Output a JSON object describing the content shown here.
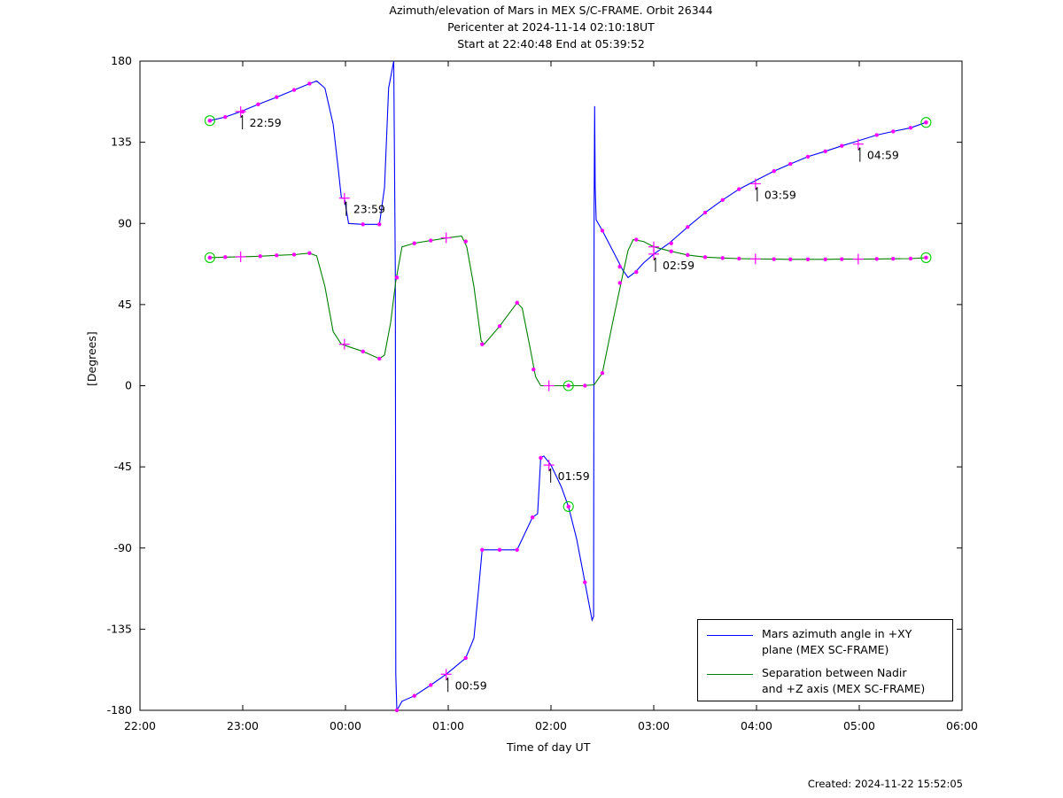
{
  "header": {
    "title": "Azimuth/elevation of Mars in MEX S/C-FRAME.  Orbit 26344",
    "subtitle1": "Pericenter at 2024-11-14 02:10:18UT",
    "subtitle2": "Start at 22:40:48 End at 05:39:52"
  },
  "footer": {
    "created": "Created: 2024-11-22 15:52:05"
  },
  "colors": {
    "azimuth": "#0000ff",
    "separation": "#008000",
    "marker": "#ff00ff",
    "endpoint": "#00cc00"
  },
  "chart_data": {
    "type": "line",
    "xlabel": "Time of day UT",
    "ylabel": "[Degrees]",
    "x_unit": "hours",
    "xlim": [
      22,
      30
    ],
    "ylim": [
      -180,
      180
    ],
    "x_ticks": [
      {
        "v": 22,
        "label": "22:00"
      },
      {
        "v": 23,
        "label": "23:00"
      },
      {
        "v": 24,
        "label": "00:00"
      },
      {
        "v": 25,
        "label": "01:00"
      },
      {
        "v": 26,
        "label": "02:00"
      },
      {
        "v": 27,
        "label": "03:00"
      },
      {
        "v": 28,
        "label": "04:00"
      },
      {
        "v": 29,
        "label": "05:00"
      },
      {
        "v": 30,
        "label": "06:00"
      }
    ],
    "y_ticks": [
      {
        "v": 180,
        "label": "180"
      },
      {
        "v": 135,
        "label": "135"
      },
      {
        "v": 90,
        "label": "90"
      },
      {
        "v": 45,
        "label": "45"
      },
      {
        "v": 0,
        "label": "0"
      },
      {
        "v": -45,
        "label": "-45"
      },
      {
        "v": -90,
        "label": "-90"
      },
      {
        "v": -135,
        "label": "-135"
      },
      {
        "v": -180,
        "label": "-180"
      }
    ],
    "legend_position": "bottom-right",
    "series": [
      {
        "name": "Mars azimuth angle in +XY plane (MEX SC-FRAME)",
        "legend_lines": [
          "Mars azimuth angle in +XY",
          "plane (MEX SC-FRAME)"
        ],
        "color": "#0000ff",
        "points": [
          [
            22.68,
            147
          ],
          [
            22.83,
            149
          ],
          [
            22.98,
            152
          ],
          [
            23.15,
            156
          ],
          [
            23.33,
            160
          ],
          [
            23.5,
            164
          ],
          [
            23.65,
            167.5
          ],
          [
            23.72,
            169
          ],
          [
            23.8,
            165
          ],
          [
            23.88,
            145
          ],
          [
            23.93,
            120
          ],
          [
            23.96,
            104
          ],
          [
            23.99,
            104
          ],
          [
            24.03,
            90
          ],
          [
            24.17,
            89.5
          ],
          [
            24.33,
            89.5
          ],
          [
            24.38,
            110
          ],
          [
            24.42,
            165
          ],
          [
            24.47,
            180
          ],
          [
            24.485,
            60
          ],
          [
            24.49,
            -160
          ],
          [
            24.5,
            -180
          ],
          [
            24.55,
            -175
          ],
          [
            24.67,
            -172
          ],
          [
            24.83,
            -166
          ],
          [
            24.98,
            -160
          ],
          [
            25.17,
            -151
          ],
          [
            25.25,
            -140
          ],
          [
            25.3,
            -110
          ],
          [
            25.33,
            -91
          ],
          [
            25.5,
            -91
          ],
          [
            25.67,
            -91
          ],
          [
            25.72,
            -85
          ],
          [
            25.82,
            -73
          ],
          [
            25.87,
            -71
          ],
          [
            25.9,
            -40
          ],
          [
            25.93,
            -39
          ],
          [
            26.0,
            -44
          ],
          [
            26.1,
            -56
          ],
          [
            26.17,
            -67
          ],
          [
            26.25,
            -85
          ],
          [
            26.33,
            -109
          ],
          [
            26.4,
            -130
          ],
          [
            26.415,
            -128
          ],
          [
            26.42,
            100
          ],
          [
            26.425,
            155
          ],
          [
            26.43,
            110
          ],
          [
            26.44,
            92
          ],
          [
            26.5,
            86
          ],
          [
            26.6,
            75
          ],
          [
            26.7,
            64
          ],
          [
            26.75,
            60
          ],
          [
            26.82,
            63
          ],
          [
            26.9,
            68
          ],
          [
            27.0,
            73
          ],
          [
            27.15,
            79
          ],
          [
            27.33,
            88
          ],
          [
            27.5,
            96
          ],
          [
            27.67,
            103
          ],
          [
            27.83,
            109
          ],
          [
            28.0,
            114
          ],
          [
            28.17,
            119
          ],
          [
            28.33,
            123
          ],
          [
            28.5,
            127
          ],
          [
            28.67,
            130
          ],
          [
            28.83,
            133
          ],
          [
            29.0,
            136
          ],
          [
            29.17,
            139
          ],
          [
            29.33,
            141
          ],
          [
            29.5,
            143
          ],
          [
            29.65,
            146
          ]
        ],
        "markers": [
          [
            22.68,
            147
          ],
          [
            22.83,
            149
          ],
          [
            23.0,
            152
          ],
          [
            23.15,
            156
          ],
          [
            23.33,
            160
          ],
          [
            23.5,
            164
          ],
          [
            23.65,
            167.5
          ],
          [
            24.17,
            89.5
          ],
          [
            24.33,
            89.5
          ],
          [
            24.5,
            60
          ],
          [
            24.5,
            -180
          ],
          [
            24.67,
            -172
          ],
          [
            24.83,
            -166
          ],
          [
            25.17,
            -151
          ],
          [
            25.33,
            -91
          ],
          [
            25.5,
            -91
          ],
          [
            25.67,
            -91
          ],
          [
            25.82,
            -73
          ],
          [
            25.9,
            -40
          ],
          [
            26.33,
            -109
          ],
          [
            26.5,
            86
          ],
          [
            26.67,
            66
          ],
          [
            26.83,
            63
          ],
          [
            27.17,
            79
          ],
          [
            27.33,
            88
          ],
          [
            27.5,
            96
          ],
          [
            27.67,
            103
          ],
          [
            27.83,
            109
          ],
          [
            28.17,
            119
          ],
          [
            28.33,
            123
          ],
          [
            28.5,
            127
          ],
          [
            28.67,
            130
          ],
          [
            28.83,
            133
          ],
          [
            29.17,
            139
          ],
          [
            29.33,
            141
          ],
          [
            29.5,
            143
          ],
          [
            29.65,
            146
          ]
        ],
        "crosses": [
          [
            22.98,
            152
          ],
          [
            23.99,
            104
          ],
          [
            24.98,
            -160
          ],
          [
            25.98,
            -44
          ],
          [
            27.0,
            73
          ],
          [
            27.99,
            112
          ],
          [
            28.99,
            134
          ]
        ],
        "endpoints": [
          [
            22.68,
            147
          ],
          [
            29.65,
            146
          ],
          [
            26.17,
            -67
          ]
        ]
      },
      {
        "name": "Separation between Nadir and +Z axis (MEX SC-FRAME)",
        "legend_lines": [
          "Separation between Nadir",
          "and +Z axis (MEX SC-FRAME)"
        ],
        "color": "#008000",
        "points": [
          [
            22.68,
            71
          ],
          [
            22.83,
            71.3
          ],
          [
            23.0,
            71.5
          ],
          [
            23.17,
            71.8
          ],
          [
            23.33,
            72.3
          ],
          [
            23.5,
            72.7
          ],
          [
            23.65,
            73.5
          ],
          [
            23.72,
            72
          ],
          [
            23.8,
            55
          ],
          [
            23.88,
            30
          ],
          [
            23.96,
            23
          ],
          [
            24.17,
            19
          ],
          [
            24.33,
            15
          ],
          [
            24.38,
            17
          ],
          [
            24.44,
            35
          ],
          [
            24.49,
            58
          ],
          [
            24.55,
            77
          ],
          [
            24.67,
            79
          ],
          [
            24.83,
            80.5
          ],
          [
            25.0,
            82
          ],
          [
            25.13,
            83
          ],
          [
            25.18,
            77
          ],
          [
            25.25,
            55
          ],
          [
            25.32,
            25
          ],
          [
            25.35,
            23
          ],
          [
            25.5,
            33
          ],
          [
            25.67,
            46
          ],
          [
            25.72,
            43
          ],
          [
            25.8,
            20
          ],
          [
            25.85,
            5
          ],
          [
            25.9,
            0
          ],
          [
            26.0,
            0
          ],
          [
            26.17,
            0
          ],
          [
            26.3,
            0
          ],
          [
            26.42,
            0.5
          ],
          [
            26.5,
            7
          ],
          [
            26.6,
            35
          ],
          [
            26.7,
            62
          ],
          [
            26.75,
            75
          ],
          [
            26.8,
            81
          ],
          [
            26.9,
            80
          ],
          [
            27.0,
            77
          ],
          [
            27.17,
            74.5
          ],
          [
            27.33,
            72.5
          ],
          [
            27.5,
            71.3
          ],
          [
            27.67,
            70.8
          ],
          [
            27.83,
            70.5
          ],
          [
            28.0,
            70.3
          ],
          [
            28.17,
            70.2
          ],
          [
            28.33,
            70.1
          ],
          [
            28.5,
            70.1
          ],
          [
            28.67,
            70.1
          ],
          [
            28.83,
            70.2
          ],
          [
            29.0,
            70.2
          ],
          [
            29.17,
            70.3
          ],
          [
            29.33,
            70.4
          ],
          [
            29.5,
            70.5
          ],
          [
            29.65,
            71
          ]
        ],
        "markers": [
          [
            22.68,
            71
          ],
          [
            22.83,
            71.3
          ],
          [
            23.17,
            71.8
          ],
          [
            23.33,
            72.3
          ],
          [
            23.5,
            72.7
          ],
          [
            23.65,
            73.5
          ],
          [
            24.17,
            19
          ],
          [
            24.33,
            15
          ],
          [
            24.5,
            60
          ],
          [
            24.67,
            79
          ],
          [
            24.83,
            80.5
          ],
          [
            25.17,
            80
          ],
          [
            25.33,
            23
          ],
          [
            25.5,
            33
          ],
          [
            25.67,
            46
          ],
          [
            25.83,
            9
          ],
          [
            26.33,
            0
          ],
          [
            26.5,
            7
          ],
          [
            26.67,
            57
          ],
          [
            26.83,
            81
          ],
          [
            27.17,
            74.5
          ],
          [
            27.33,
            72.5
          ],
          [
            27.5,
            71.3
          ],
          [
            27.67,
            70.8
          ],
          [
            27.83,
            70.5
          ],
          [
            28.17,
            70.2
          ],
          [
            28.33,
            70.1
          ],
          [
            28.5,
            70.1
          ],
          [
            28.67,
            70.1
          ],
          [
            28.83,
            70.2
          ],
          [
            29.17,
            70.3
          ],
          [
            29.33,
            70.4
          ],
          [
            29.5,
            70.5
          ],
          [
            29.65,
            71
          ]
        ],
        "crosses": [
          [
            22.98,
            71.5
          ],
          [
            23.99,
            23
          ],
          [
            24.98,
            82
          ],
          [
            25.98,
            0
          ],
          [
            27.0,
            77
          ],
          [
            27.99,
            70.3
          ],
          [
            28.99,
            70.2
          ]
        ],
        "endpoints": [
          [
            22.68,
            71
          ],
          [
            29.65,
            71
          ],
          [
            26.17,
            0
          ]
        ]
      }
    ],
    "annotations": [
      {
        "x": 22.98,
        "y": 152,
        "label": "22:59"
      },
      {
        "x": 23.99,
        "y": 104,
        "label": "23:59"
      },
      {
        "x": 24.98,
        "y": -160,
        "label": "00:59"
      },
      {
        "x": 25.98,
        "y": -44,
        "label": "01:59"
      },
      {
        "x": 27.0,
        "y": 73,
        "label": "02:59"
      },
      {
        "x": 27.99,
        "y": 112,
        "label": "03:59"
      },
      {
        "x": 28.99,
        "y": 134,
        "label": "04:59"
      }
    ]
  }
}
